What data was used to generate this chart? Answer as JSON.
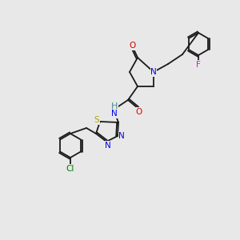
{
  "background_color": "#e8e8e8",
  "bond_color": "#1a1a1a",
  "colors": {
    "N": "#0000ee",
    "O": "#dd0000",
    "S": "#aaaa00",
    "F": "#ee00ee",
    "Cl": "#007700",
    "H": "#4a8888",
    "C": "#1a1a1a"
  },
  "font_size": 7.5,
  "line_width": 1.3
}
